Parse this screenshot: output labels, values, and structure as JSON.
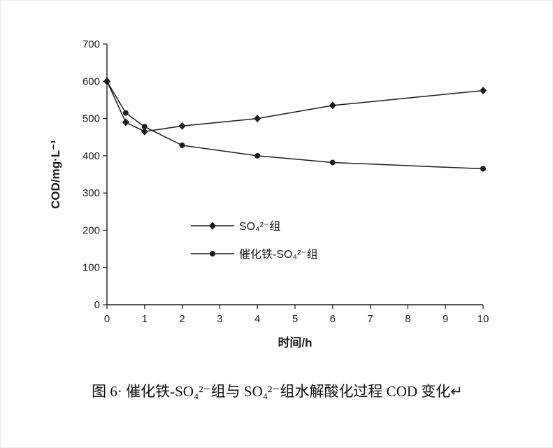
{
  "figure": {
    "caption": "图 6· 催化铁-SO₄²⁻组与 SO₄²⁻组水解酸化过程 COD 变化↵"
  },
  "chart_data": {
    "type": "line",
    "x": [
      0,
      0.5,
      1,
      2,
      4,
      6,
      10
    ],
    "series": [
      {
        "name": "SO₄²⁻组",
        "marker": "diamond",
        "color": "#1c1c1c",
        "values": [
          600,
          490,
          465,
          480,
          500,
          535,
          575
        ]
      },
      {
        "name": "催化铁-SO₄²⁻组",
        "marker": "circle",
        "color": "#1c1c1c",
        "values": [
          600,
          515,
          478,
          428,
          400,
          382,
          365
        ]
      }
    ],
    "xlabel": "时间/h",
    "ylabel": "COD/mg·L⁻¹",
    "xlim": [
      0,
      10
    ],
    "ylim": [
      0,
      700
    ],
    "xticks": [
      0,
      1,
      2,
      3,
      4,
      5,
      6,
      7,
      8,
      9,
      10
    ],
    "yticks": [
      0,
      100,
      200,
      300,
      400,
      500,
      600,
      700
    ],
    "grid": false,
    "legend_position": "inside-center-left"
  }
}
